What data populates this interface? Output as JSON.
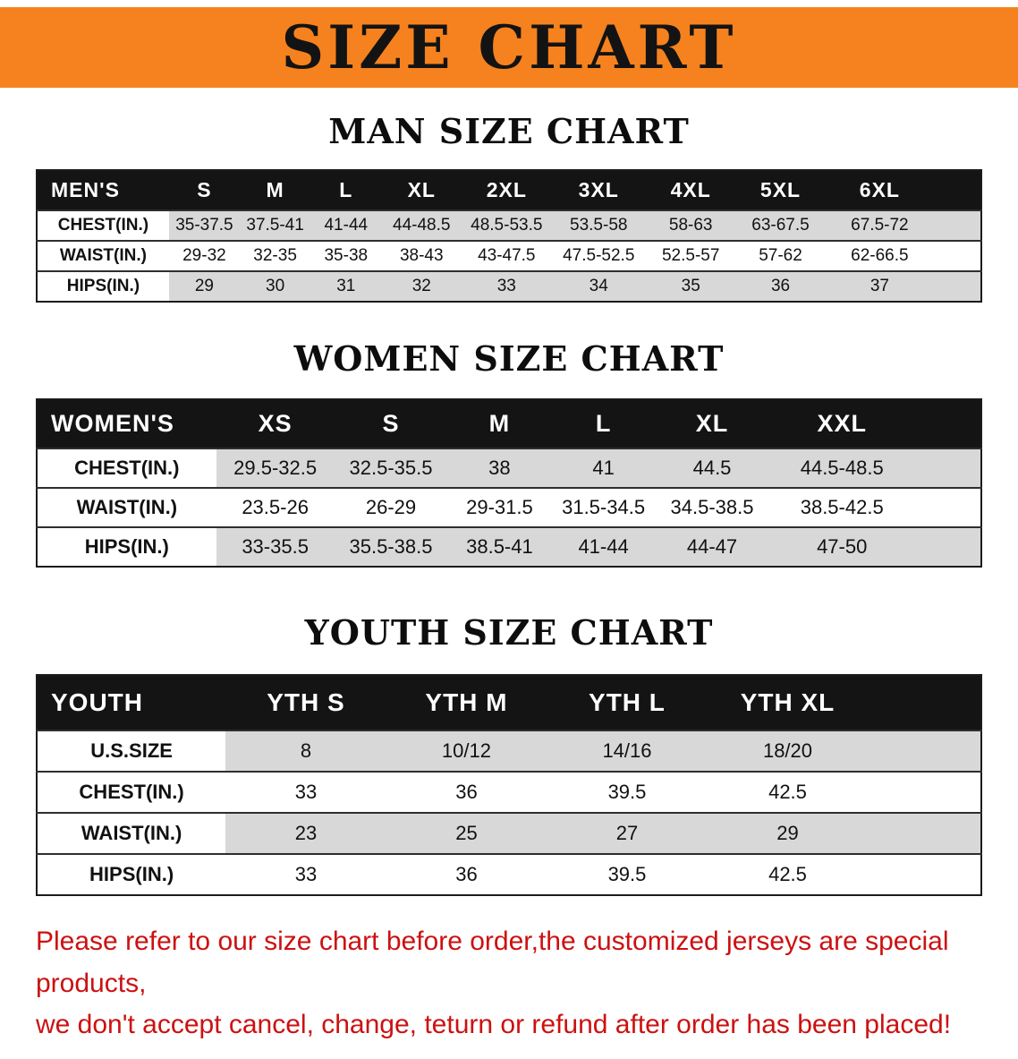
{
  "banner": {
    "title": "SIZE CHART"
  },
  "sections": {
    "men": {
      "heading": "MAN SIZE CHART"
    },
    "women": {
      "heading": "WOMEN SIZE CHART"
    },
    "youth": {
      "heading": "YOUTH SIZE CHART"
    }
  },
  "tables": {
    "men": {
      "header": [
        "MEN'S",
        "S",
        "M",
        "L",
        "XL",
        "2XL",
        "3XL",
        "4XL",
        "5XL",
        "6XL"
      ],
      "rows": [
        [
          "CHEST(IN.)",
          "35-37.5",
          "37.5-41",
          "41-44",
          "44-48.5",
          "48.5-53.5",
          "53.5-58",
          "58-63",
          "63-67.5",
          "67.5-72"
        ],
        [
          "WAIST(IN.)",
          "29-32",
          "32-35",
          "35-38",
          "38-43",
          "43-47.5",
          "47.5-52.5",
          "52.5-57",
          "57-62",
          "62-66.5"
        ],
        [
          "HIPS(IN.)",
          "29",
          "30",
          "31",
          "32",
          "33",
          "34",
          "35",
          "36",
          "37"
        ]
      ]
    },
    "women": {
      "header": [
        "WOMEN'S",
        "XS",
        "S",
        "M",
        "L",
        "XL",
        "XXL"
      ],
      "rows": [
        [
          "CHEST(IN.)",
          "29.5-32.5",
          "32.5-35.5",
          "38",
          "41",
          "44.5",
          "44.5-48.5"
        ],
        [
          "WAIST(IN.)",
          "23.5-26",
          "26-29",
          "29-31.5",
          "31.5-34.5",
          "34.5-38.5",
          "38.5-42.5"
        ],
        [
          "HIPS(IN.)",
          "33-35.5",
          "35.5-38.5",
          "38.5-41",
          "41-44",
          "44-47",
          "47-50"
        ]
      ]
    },
    "youth": {
      "header": [
        "YOUTH",
        "YTH S",
        "YTH M",
        "YTH L",
        "YTH XL"
      ],
      "rows": [
        [
          "U.S.SIZE",
          "8",
          "10/12",
          "14/16",
          "18/20"
        ],
        [
          "CHEST(IN.)",
          "33",
          "36",
          "39.5",
          "42.5"
        ],
        [
          "WAIST(IN.)",
          "23",
          "25",
          "27",
          "29"
        ],
        [
          "HIPS(IN.)",
          "33",
          "36",
          "39.5",
          "42.5"
        ]
      ]
    }
  },
  "footer": {
    "line1": "Please refer to our size chart before order,the customized jerseys are special products,",
    "line2": "we don't accept cancel, change, teturn or refund after order has been placed!"
  },
  "colors": {
    "banner_orange": "#F5821E",
    "header_bg": "#141414",
    "stripe": "#D8D8D8",
    "footer_red": "#CC1111"
  }
}
